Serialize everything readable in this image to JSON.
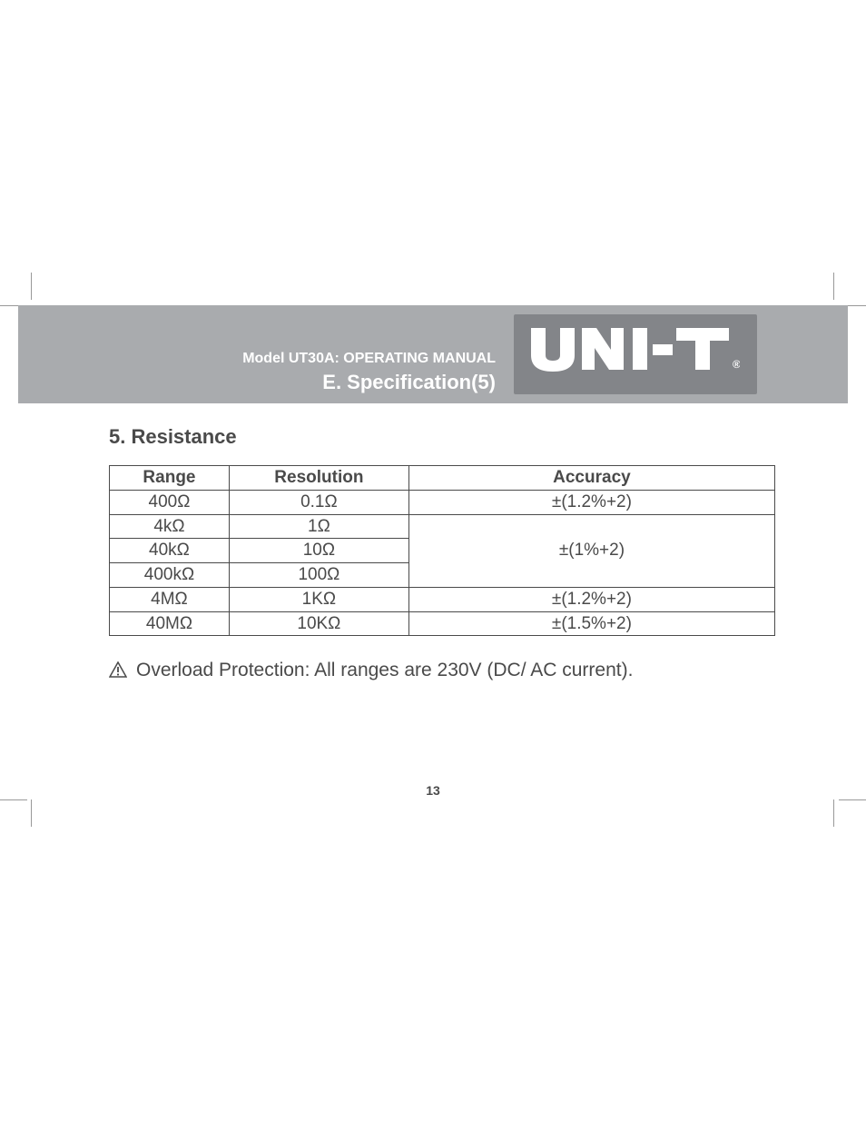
{
  "header": {
    "model_line": "Model UT30A: OPERATING MANUAL",
    "spec_line": "E.  Specification(5)",
    "logo_text": "UNI-T",
    "logo_reg": "®",
    "band_bg": "#a9abae",
    "inner_bg": "#838589",
    "text_color": "#ffffff"
  },
  "section": {
    "title": "5. Resistance"
  },
  "table": {
    "columns": [
      "Range",
      "Resolution",
      "Accuracy"
    ],
    "col_widths_pct": [
      18,
      27,
      55
    ],
    "border_color": "#4a4a4a",
    "text_color": "#4a4a4a",
    "font_size_pt": 14,
    "rows": [
      {
        "range": "400Ω",
        "resolution": "0.1Ω",
        "accuracy": "±(1.2%+2)",
        "acc_rowspan": 1
      },
      {
        "range": "4kΩ",
        "resolution": "1Ω",
        "accuracy": "±(1%+2)",
        "acc_rowspan": 3
      },
      {
        "range": "40kΩ",
        "resolution": "10Ω"
      },
      {
        "range": "400kΩ",
        "resolution": "100Ω"
      },
      {
        "range": "4MΩ",
        "resolution": "1KΩ",
        "accuracy": "±(1.2%+2)",
        "acc_rowspan": 1
      },
      {
        "range": "40MΩ",
        "resolution": "10KΩ",
        "accuracy": "±(1.5%+2)",
        "acc_rowspan": 1
      }
    ]
  },
  "note": {
    "icon": "warning",
    "text": "Overload Protection: All ranges are 230V (DC/ AC current)."
  },
  "page_number": "13",
  "page_bg": "#ffffff",
  "crop_mark_color": "#999999"
}
